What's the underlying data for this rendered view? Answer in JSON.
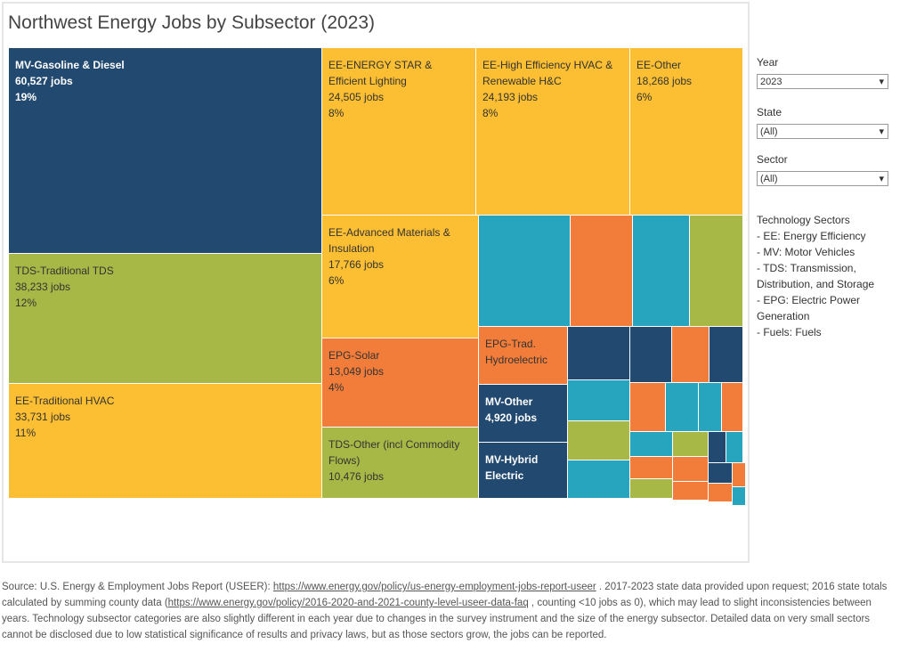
{
  "chart_data": {
    "type": "treemap",
    "title": "Northwest Energy Jobs by Subsector (2023)",
    "categories": [
      "MV-Gasoline & Diesel",
      "TDS-Traditional TDS",
      "EE-Traditional HVAC",
      "EE-ENERGY STAR & Efficient Lighting",
      "EE-High Efficiency HVAC & Renewable H&C",
      "EE-Other",
      "EE-Advanced Materials & Insulation",
      "EPG-Solar",
      "TDS-Other (incl Commodity Flows)",
      "EPG-Trad. Hydroelectric",
      "MV-Other",
      "MV-Hybrid Electric",
      null,
      null,
      null,
      null,
      null,
      null,
      null,
      null,
      null,
      null,
      null,
      null,
      null,
      null,
      null,
      null,
      null,
      null,
      null,
      null,
      null,
      null,
      null,
      null,
      null,
      null,
      null
    ],
    "values": [
      60527,
      38233,
      33731,
      24505,
      24193,
      18268,
      17766,
      13049,
      10476,
      4850,
      4920,
      4700,
      9650,
      6560,
      6000,
      5630,
      3150,
      2420,
      2310,
      2260,
      2220,
      1990,
      1790,
      1650,
      1530,
      1070,
      990,
      1010,
      840,
      525,
      500,
      900,
      840,
      470,
      240,
      790,
      570,
      340,
      120
    ],
    "value_labels": [
      "60,527 jobs",
      "38,233 jobs",
      "33,731 jobs",
      "24,505 jobs",
      "24,193 jobs",
      "18,268 jobs",
      "17,766 jobs",
      "13,049 jobs",
      "10,476 jobs",
      null,
      "4,920 jobs",
      null,
      null,
      null,
      null,
      null,
      null,
      null,
      null,
      null,
      null,
      null,
      null,
      null,
      null,
      null,
      null,
      null,
      null,
      null,
      null,
      null,
      null,
      null,
      null,
      null,
      null,
      null,
      null
    ],
    "shares": [
      19,
      12,
      11,
      8,
      8,
      6,
      6,
      4,
      null,
      null,
      null,
      null,
      null,
      null,
      null,
      null,
      null,
      null,
      null,
      null,
      null,
      null,
      null,
      null,
      null,
      null,
      null,
      null,
      null,
      null,
      null,
      null,
      null,
      null,
      null,
      null,
      null,
      null,
      null
    ],
    "share_labels": [
      "19%",
      "12%",
      "11%",
      "8%",
      "8%",
      "6%",
      "6%",
      "4%",
      null,
      null,
      null,
      null,
      null,
      null,
      null,
      null,
      null,
      null,
      null,
      null,
      null,
      null,
      null,
      null,
      null,
      null,
      null,
      null,
      null,
      null,
      null,
      null,
      null,
      null,
      null,
      null,
      null,
      null,
      null
    ],
    "colors": [
      "#22496f",
      "#a8b846",
      "#fcbf33",
      "#fcbf33",
      "#fcbf33",
      "#fcbf33",
      "#fcbf33",
      "#f27d3b",
      "#a8b846",
      "#f27d3b",
      "#22496f",
      "#22496f",
      "#27a4be",
      "#f27d3b",
      "#27a4be",
      "#a8b846",
      "#22496f",
      "#27a4be",
      "#a8b846",
      "#27a4be",
      "#22496f",
      "#f27d3b",
      "#22496f",
      "#f27d3b",
      "#27a4be",
      "#27a4be",
      "#f27d3b",
      "#27a4be",
      "#a8b846",
      "#22496f",
      "#27a4be",
      "#f27d3b",
      "#f27d3b",
      "#22496f",
      "#f27d3b",
      "#a8b846",
      "#f27d3b",
      "#f27d3b",
      "#27a4be"
    ]
  },
  "filters": [
    {
      "label": "Year",
      "value": "2023"
    },
    {
      "label": "State",
      "value": "(All)"
    },
    {
      "label": "Sector",
      "value": "(All)"
    }
  ],
  "legend": {
    "title": "Technology Sectors",
    "lines": [
      "- EE: Energy Efficiency",
      "- MV: Motor Vehicles",
      "- TDS: Transmission, Distribution, and Storage",
      "- EPG: Electric Power Generation",
      "- Fuels: Fuels"
    ]
  },
  "footer": {
    "lead": "Source:",
    "text1": " U.S. Energy & Employment Jobs Report (USEER): ",
    "link1": "https://www.energy.gov/policy/us-energy-employment-jobs-report-useer",
    "text2": " . 2017-2023 state data provided upon request; 2016 state totals calculated by summing county data (",
    "link2": "https://www.energy.gov/policy/2016-2020-and-2021-county-level-useer-data-faq",
    "text3": " , counting <10 jobs as 0), which may lead to slight inconsistencies between years. Technology subsector categories are also slightly different in each year due to changes in the survey instrument and the size of the energy subsector. Detailed data on very small sectors cannot be disclosed due to low statistical significance of results and privacy laws, but as those sectors grow, the jobs can be reported."
  }
}
